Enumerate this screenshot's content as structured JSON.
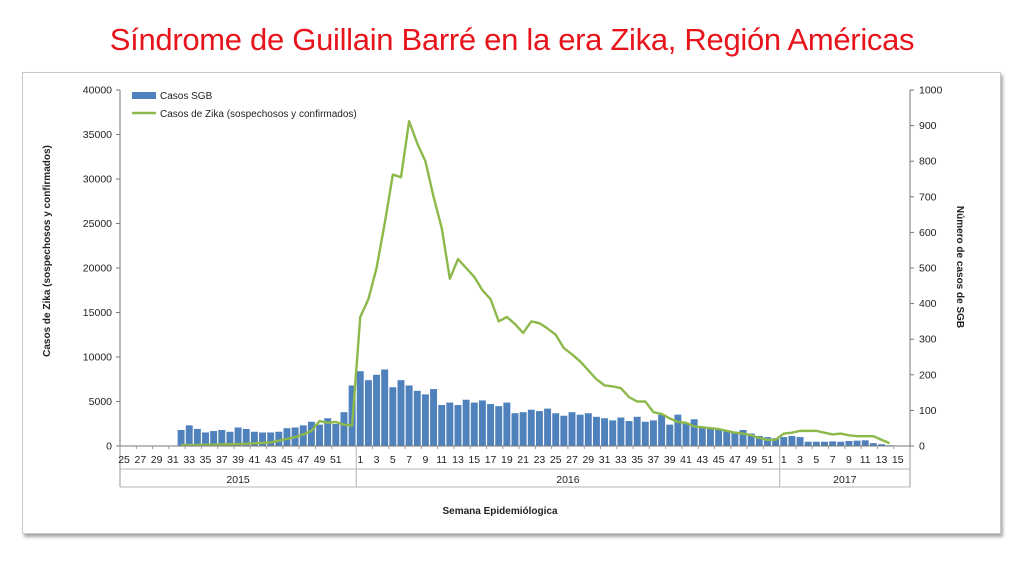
{
  "slide": {
    "title": "Síndrome de Guillain Barré en la era Zika, Región Américas"
  },
  "colors": {
    "title": "#e8141c",
    "bars": "#4f81bd",
    "line": "#8db84a"
  },
  "chart_data": {
    "type": "bar+line",
    "title": "",
    "xlabel": "Semana Epidemiólogica",
    "ylabel_left": "Casos de Zika (sospechosos y confirmados)",
    "ylabel_right": "Número de casos de SGB",
    "ylim_left": [
      0,
      40000
    ],
    "ylim_right": [
      0,
      1000
    ],
    "yticks_left": [
      "0",
      "5000",
      "10000",
      "15000",
      "20000",
      "25000",
      "30000",
      "35000",
      "40000"
    ],
    "yticks_right": [
      "0",
      "100",
      "200",
      "300",
      "400",
      "500",
      "600",
      "700",
      "800",
      "900",
      "1000"
    ],
    "legend": {
      "position": "top-left",
      "entries": [
        "Casos SGB",
        "Casos de Zika (sospechosos y confirmados)"
      ]
    },
    "grid": false,
    "year_groups": [
      {
        "label": "2015",
        "first_week": 25,
        "last_week": 53
      },
      {
        "label": "2016",
        "first_week": 1,
        "last_week": 52
      },
      {
        "label": "2017",
        "first_week": 1,
        "last_week": 16
      }
    ],
    "week_tick_labels": [
      "25",
      "27",
      "29",
      "31",
      "33",
      "35",
      "37",
      "39",
      "41",
      "43",
      "45",
      "47",
      "49",
      "51",
      "1",
      "3",
      "5",
      "7",
      "9",
      "11",
      "13",
      "15",
      "17",
      "19",
      "21",
      "23",
      "25",
      "27",
      "29",
      "31",
      "33",
      "35",
      "37",
      "39",
      "41",
      "43",
      "45",
      "47",
      "49",
      "51",
      "1",
      "3",
      "5",
      "7",
      "9",
      "11",
      "13",
      "15"
    ],
    "series": [
      {
        "name": "Casos SGB",
        "kind": "bar",
        "axis": "right",
        "start_week": "2015-32",
        "values": [
          45,
          58,
          48,
          38,
          42,
          45,
          40,
          52,
          48,
          40,
          38,
          38,
          40,
          50,
          52,
          58,
          68,
          60,
          78,
          62,
          95,
          170,
          210,
          185,
          200,
          215,
          165,
          185,
          170,
          155,
          145,
          160,
          115,
          122,
          115,
          130,
          122,
          128,
          118,
          112,
          122,
          92,
          95,
          102,
          98,
          105,
          92,
          85,
          95,
          88,
          92,
          82,
          78,
          72,
          80,
          70,
          82,
          68,
          72,
          88,
          60,
          88,
          65,
          75,
          55,
          52,
          48,
          42,
          40,
          45,
          35,
          28,
          25,
          22,
          25,
          28,
          25,
          12,
          12,
          12,
          13,
          12,
          14,
          15,
          16,
          8,
          5,
          2
        ]
      },
      {
        "name": "Casos de Zika (sospechosos y confirmados)",
        "kind": "line",
        "axis": "left",
        "start_week": "2015-32",
        "values": [
          100,
          100,
          120,
          130,
          150,
          180,
          200,
          220,
          250,
          300,
          350,
          400,
          600,
          800,
          1000,
          1300,
          1700,
          2800,
          2600,
          2700,
          2400,
          2300,
          14500,
          16500,
          20000,
          25000,
          30500,
          30200,
          36500,
          34000,
          32000,
          28000,
          24500,
          18800,
          21000,
          20000,
          19000,
          17500,
          16500,
          14000,
          14500,
          13700,
          12700,
          14000,
          13800,
          13200,
          12500,
          11000,
          10300,
          9500,
          8500,
          7500,
          6800,
          6700,
          6500,
          5500,
          5000,
          5000,
          3800,
          3600,
          3100,
          2700,
          2600,
          2200,
          2100,
          2000,
          1900,
          1700,
          1500,
          1400,
          1200,
          900,
          700,
          700,
          1400,
          1500,
          1700,
          1700,
          1700,
          1500,
          1300,
          1400,
          1200,
          1100,
          1100,
          1100,
          700,
          300
        ]
      }
    ]
  }
}
